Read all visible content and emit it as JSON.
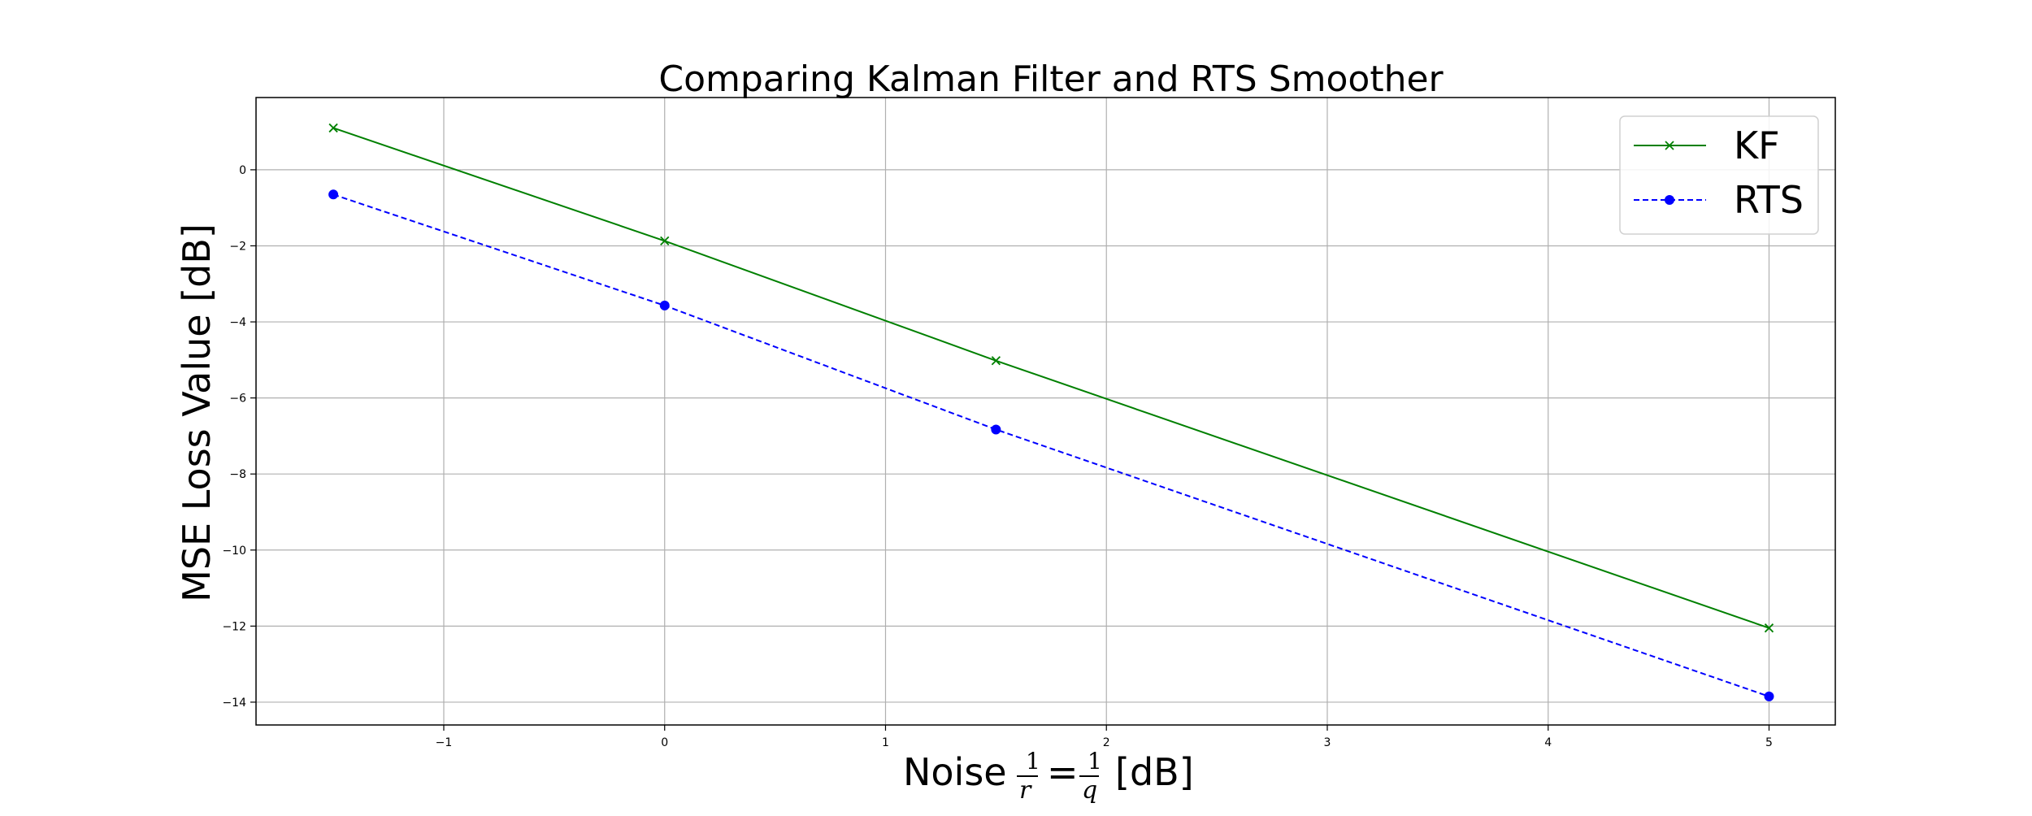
{
  "chart_data": {
    "type": "line",
    "title": "Comparing Kalman Filter and RTS Smoother",
    "xlabel": {
      "prefix": "Noise",
      "frac1_num": "1",
      "frac1_den": "r",
      "equals": "=",
      "frac2_num": "1",
      "frac2_den": "q",
      "suffix": "[dB]"
    },
    "ylabel": "MSE Loss Value [dB]",
    "xlim": [
      -1.85,
      5.3
    ],
    "ylim": [
      -14.6,
      1.9
    ],
    "xticks": [
      -1,
      0,
      1,
      2,
      3,
      4,
      5
    ],
    "yticks": [
      0,
      -2,
      -4,
      -6,
      -8,
      -10,
      -12,
      -14
    ],
    "grid": true,
    "legend_position": "top-right",
    "series": [
      {
        "name": "KF",
        "color": "#008000",
        "line_style": "solid",
        "marker": "x",
        "x": [
          -1.5,
          0,
          1.5,
          5
        ],
        "y": [
          1.1,
          -1.87,
          -5.02,
          -12.05
        ]
      },
      {
        "name": "RTS",
        "color": "#0000ff",
        "line_style": "dashed",
        "marker": "circle",
        "x": [
          -1.5,
          0,
          1.5,
          5
        ],
        "y": [
          -0.65,
          -3.57,
          -6.83,
          -13.85
        ]
      }
    ]
  }
}
